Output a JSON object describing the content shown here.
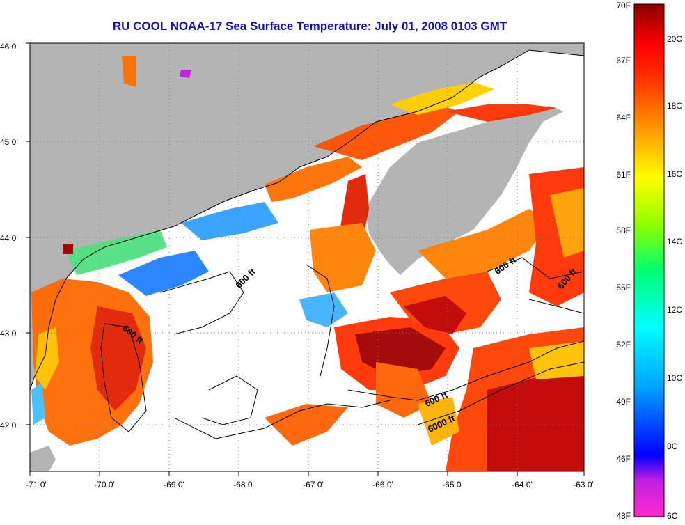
{
  "title": "RU COOL  NOAA-17  Sea Surface Temperature:  July 01, 2008 0103 GMT",
  "map": {
    "lon_labels": [
      "-71 0'",
      "-70 0'",
      "-69 0'",
      "-68 0'",
      "-67 0'",
      "-66 0'",
      "-65 0'",
      "-64 0'",
      "-63 0'"
    ],
    "lat_labels": [
      "46 0'",
      "45 0'",
      "44 0'",
      "43 0'",
      "42 0'"
    ],
    "contour_labels": [
      "600 ft",
      "600 ft",
      "600 ft",
      "600 ft",
      "600 ft",
      "6000 ft"
    ],
    "land_color": "#b4b4b4",
    "cloud_color": "#ffffff"
  },
  "colorbar": {
    "f_labels": [
      "70F",
      "67F",
      "64F",
      "61F",
      "58F",
      "55F",
      "52F",
      "49F",
      "46F",
      "43F"
    ],
    "c_labels": [
      "20C",
      "18C",
      "16C",
      "14C",
      "12C",
      "10C",
      "8C",
      "6C"
    ],
    "colors": [
      "#ff2ad0",
      "#8020d0",
      "#0000ff",
      "#00a0ff",
      "#00ffff",
      "#00ff70",
      "#90ff00",
      "#ffff00",
      "#ffa000",
      "#ff4000",
      "#ff0000",
      "#8b0000"
    ]
  }
}
